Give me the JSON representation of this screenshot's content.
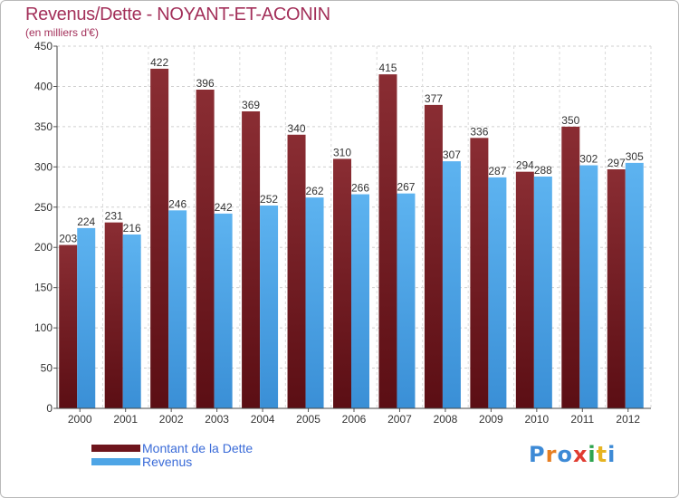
{
  "title": "Revenus/Dette - NOYANT-ET-ACONIN",
  "subtitle": "(en milliers d'€)",
  "colors": {
    "dette": "#7a1c24",
    "revenus": "#4ea5e6",
    "title": "#a3305a",
    "legend_text": "#3a6bd8"
  },
  "legend": [
    {
      "label": "Montant de la Dette",
      "color": "#7a1c24"
    },
    {
      "label": "Revenus",
      "color": "#4ea5e6"
    }
  ],
  "logo": {
    "letters": [
      "P",
      "r",
      "o",
      "x",
      "i",
      "t",
      "i"
    ],
    "colors": [
      "#3d8ad6",
      "#e67e22",
      "#3d8ad6",
      "#e03c31",
      "#2ea44f",
      "#e6b422",
      "#3d8ad6"
    ]
  },
  "chart_data": {
    "type": "bar",
    "categories": [
      "2000",
      "2001",
      "2002",
      "2003",
      "2004",
      "2005",
      "2006",
      "2007",
      "2008",
      "2009",
      "2010",
      "2011",
      "2012"
    ],
    "series": [
      {
        "name": "Montant de la Dette",
        "values": [
          203,
          231,
          422,
          396,
          369,
          340,
          310,
          415,
          377,
          336,
          294,
          350,
          297
        ]
      },
      {
        "name": "Revenus",
        "values": [
          224,
          216,
          246,
          242,
          252,
          262,
          266,
          267,
          307,
          287,
          288,
          302,
          305
        ]
      }
    ],
    "ylim": [
      0,
      450
    ],
    "yticks": [
      0,
      50,
      100,
      150,
      200,
      250,
      300,
      350,
      400,
      450
    ],
    "grid": true,
    "legend_position": "bottom-left"
  }
}
